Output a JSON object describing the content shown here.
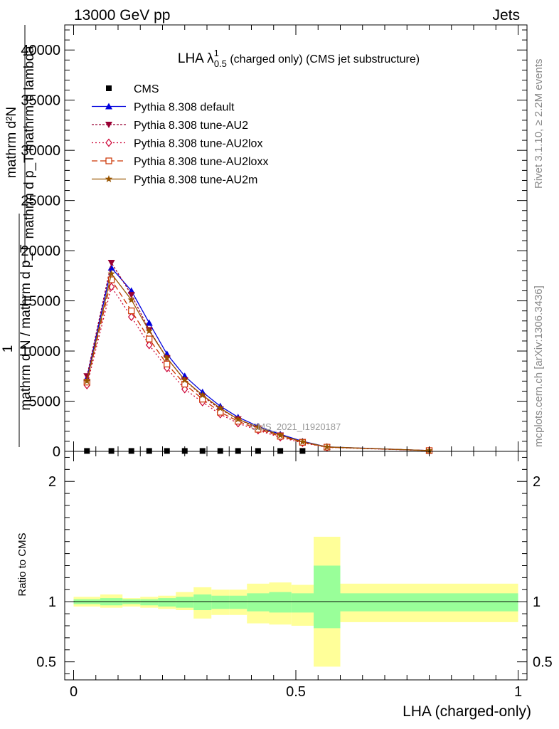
{
  "header": {
    "left": "13000 GeV pp",
    "right": "Jets"
  },
  "side_labels": {
    "rivet": "Rivet 3.1.10, ≥ 2.2M events",
    "mcplots": "mcplots.cern.ch [arXiv:1306.3436]"
  },
  "watermark": "CMS_2021_I1920187",
  "chart_data": [
    {
      "type": "line",
      "title": "LHA λ",
      "title_sup": "1",
      "title_sub": "0.5",
      "title_suffix": " (charged only) (CMS jet substructure)",
      "ylabel_lines": [
        "mathrm d²N",
        "mathrm d p_T mathrm d lambda",
        "1",
        "mathrm d N / mathrm d p_T"
      ],
      "ylim": [
        0,
        42500
      ],
      "xlim": [
        -0.02,
        1.02
      ],
      "yticks": [
        0,
        5000,
        10000,
        15000,
        20000,
        25000,
        30000,
        35000,
        40000
      ],
      "ytick_labels": [
        "0",
        "5000",
        "10000",
        "15000",
        "20000",
        "25000",
        "30000",
        "35000",
        "40000"
      ],
      "legend_position": "top-left",
      "series": [
        {
          "name": "CMS",
          "color": "#000000",
          "marker": "square",
          "dash": "none",
          "x": [
            0.03,
            0.085,
            0.13,
            0.17,
            0.21,
            0.25,
            0.29,
            0.33,
            0.37,
            0.415,
            0.465,
            0.515
          ],
          "y": [
            40,
            40,
            40,
            40,
            40,
            40,
            40,
            40,
            40,
            40,
            40,
            40
          ]
        },
        {
          "name": "Pythia 8.308 default",
          "color": "#0000dd",
          "marker": "triangle-up",
          "dash": "none",
          "x": [
            0.03,
            0.085,
            0.13,
            0.17,
            0.21,
            0.25,
            0.29,
            0.33,
            0.37,
            0.415,
            0.465,
            0.515,
            0.57,
            0.8
          ],
          "y": [
            7300,
            18300,
            16000,
            12800,
            9700,
            7500,
            5900,
            4500,
            3400,
            2500,
            1700,
            1000,
            450,
            80
          ]
        },
        {
          "name": "Pythia 8.308 tune-AU2",
          "color": "#990033",
          "marker": "triangle-down",
          "dash": "3,2",
          "x": [
            0.03,
            0.085,
            0.13,
            0.17,
            0.21,
            0.25,
            0.29,
            0.33,
            0.37,
            0.415,
            0.465,
            0.515,
            0.57,
            0.8
          ],
          "y": [
            7500,
            18800,
            15600,
            12100,
            9300,
            7100,
            5500,
            4200,
            3200,
            2300,
            1600,
            950,
            430,
            80
          ]
        },
        {
          "name": "Pythia 8.308 tune-AU2lox",
          "color": "#cc0033",
          "marker": "diamond-open",
          "dash": "2,3",
          "x": [
            0.03,
            0.085,
            0.13,
            0.17,
            0.21,
            0.25,
            0.29,
            0.33,
            0.37,
            0.415,
            0.465,
            0.515,
            0.57,
            0.8
          ],
          "y": [
            6600,
            16400,
            13400,
            10600,
            8300,
            6200,
            4900,
            3700,
            2800,
            2100,
            1400,
            850,
            400,
            70
          ]
        },
        {
          "name": "Pythia 8.308 tune-AU2loxx",
          "color": "#cc3300",
          "marker": "square-open",
          "dash": "8,4",
          "x": [
            0.03,
            0.085,
            0.13,
            0.17,
            0.21,
            0.25,
            0.29,
            0.33,
            0.37,
            0.415,
            0.465,
            0.515,
            0.57,
            0.8
          ],
          "y": [
            6900,
            17100,
            14000,
            11200,
            8700,
            6700,
            5200,
            3900,
            3000,
            2200,
            1500,
            900,
            420,
            75
          ]
        },
        {
          "name": "Pythia 8.308 tune-AU2m",
          "color": "#995500",
          "marker": "star",
          "dash": "none",
          "x": [
            0.03,
            0.085,
            0.13,
            0.17,
            0.21,
            0.25,
            0.29,
            0.33,
            0.37,
            0.415,
            0.465,
            0.515,
            0.57,
            0.8
          ],
          "y": [
            7000,
            17700,
            15100,
            12000,
            9300,
            7100,
            5600,
            4300,
            3200,
            2400,
            1600,
            950,
            440,
            80
          ]
        }
      ]
    },
    {
      "type": "area",
      "ylabel": "Ratio to CMS",
      "xlabel": "LHA (charged-only)",
      "ylim": [
        0.35,
        2.25
      ],
      "xlim": [
        -0.02,
        1.02
      ],
      "yticks": [
        0.5,
        1,
        2
      ],
      "ytick_labels": [
        "0.5",
        "1",
        "2"
      ],
      "xticks": [
        0,
        0.5,
        1
      ],
      "xtick_labels": [
        "0",
        "0.5",
        "1"
      ],
      "reference_line": 1,
      "bin_edges": [
        0.0,
        0.06,
        0.11,
        0.15,
        0.19,
        0.23,
        0.27,
        0.31,
        0.35,
        0.39,
        0.44,
        0.49,
        0.54,
        0.6,
        1.0
      ],
      "band_outer_low": [
        0.96,
        0.95,
        0.96,
        0.95,
        0.94,
        0.93,
        0.86,
        0.89,
        0.89,
        0.82,
        0.81,
        0.8,
        0.46,
        0.83
      ],
      "band_outer_high": [
        1.04,
        1.06,
        1.03,
        1.04,
        1.05,
        1.08,
        1.12,
        1.1,
        1.1,
        1.15,
        1.16,
        1.14,
        1.54,
        1.15
      ],
      "band_inner_low": [
        0.98,
        0.97,
        0.98,
        0.97,
        0.96,
        0.95,
        0.93,
        0.94,
        0.94,
        0.92,
        0.91,
        0.91,
        0.78,
        0.92
      ],
      "band_inner_high": [
        1.02,
        1.03,
        1.02,
        1.02,
        1.03,
        1.04,
        1.06,
        1.05,
        1.05,
        1.07,
        1.08,
        1.07,
        1.3,
        1.07
      ],
      "band_outer_color": "#ffff99",
      "band_inner_color": "#99ff99"
    }
  ]
}
